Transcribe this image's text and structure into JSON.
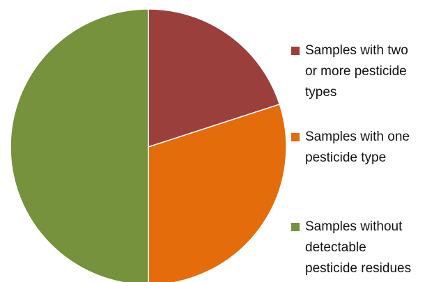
{
  "chart_data": {
    "type": "pie",
    "slices": [
      {
        "label": "Samples with two\nor more pesticide\ntypes",
        "value": 20,
        "color": "#9b3f3c"
      },
      {
        "label": "Samples with one\npesticide type",
        "value": 30,
        "color": "#e46c0a"
      },
      {
        "label": "Samples without\ndetectable\npesticide residues",
        "value": 50,
        "color": "#76923c"
      }
    ],
    "start_angle": "12 o'clock",
    "direction": "clockwise",
    "legend": "right"
  }
}
